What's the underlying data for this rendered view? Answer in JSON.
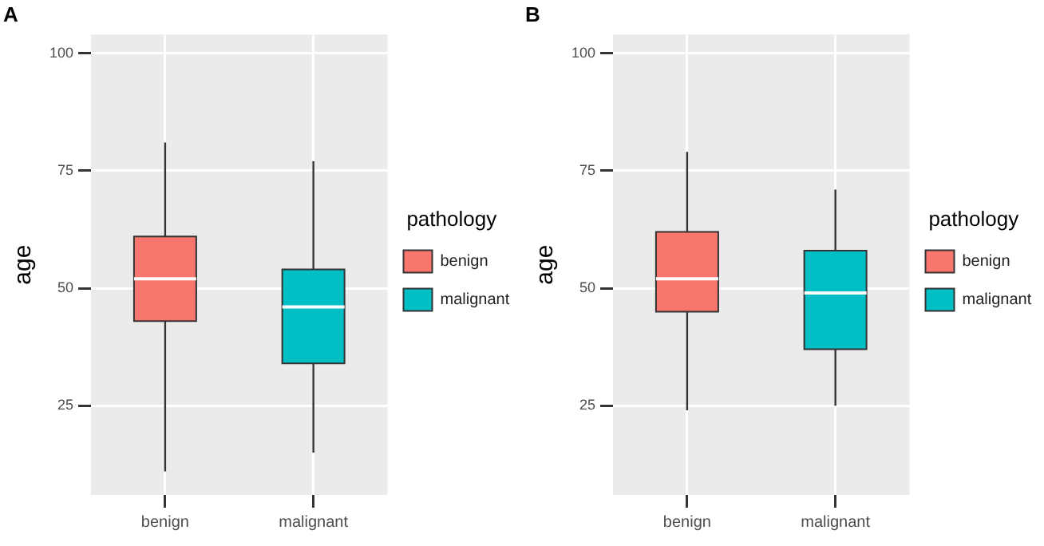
{
  "chart_data": [
    {
      "type": "box",
      "title": "A",
      "ylabel": "age",
      "legend_title": "pathology",
      "categories": [
        "benign",
        "malignant"
      ],
      "ylim": [
        6,
        104
      ],
      "yticks": [
        25,
        50,
        75,
        100
      ],
      "grid": true,
      "legend": "right",
      "series": [
        {
          "name": "benign",
          "color": "#f8766d",
          "boxes": [
            {
              "low": 11,
              "q1": 43,
              "median": 52,
              "q3": 61,
              "high": 81
            },
            null
          ]
        },
        {
          "name": "malignant",
          "color": "#00bfc4",
          "boxes": [
            null,
            {
              "low": 15,
              "q1": 34,
              "median": 46,
              "q3": 54,
              "high": 77
            }
          ]
        }
      ]
    },
    {
      "type": "box",
      "title": "B",
      "ylabel": "age",
      "legend_title": "pathology",
      "categories": [
        "benign",
        "malignant"
      ],
      "ylim": [
        6,
        104
      ],
      "yticks": [
        25,
        50,
        75,
        100
      ],
      "grid": true,
      "legend": "right",
      "series": [
        {
          "name": "benign",
          "color": "#f8766d",
          "boxes": [
            {
              "low": 24,
              "q1": 45,
              "median": 52,
              "q3": 62,
              "high": 79
            },
            null
          ]
        },
        {
          "name": "malignant",
          "color": "#00bfc4",
          "boxes": [
            null,
            {
              "low": 25,
              "q1": 37,
              "median": 49,
              "q3": 58,
              "high": 71
            }
          ]
        }
      ]
    }
  ]
}
